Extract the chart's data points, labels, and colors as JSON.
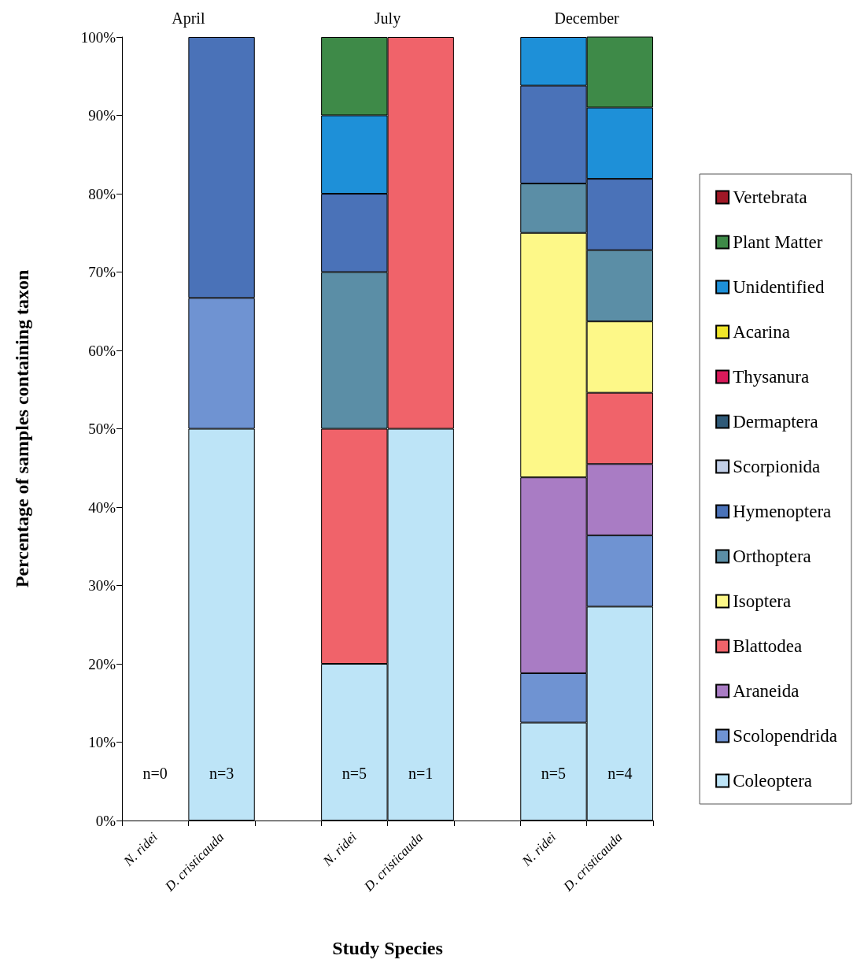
{
  "chart_data": {
    "type": "bar",
    "stacked": true,
    "xlabel": "Study Species",
    "ylabel": "Percentage of samples containing taxon",
    "categories": [
      "N. ridei",
      "D. cristicauda",
      null,
      "N. ridei",
      "D. cristicauda",
      null,
      "N. ridei",
      "D. cristicauda"
    ],
    "ylim": [
      0,
      100
    ],
    "yticks": [
      {
        "value": 0,
        "label": "0%"
      },
      {
        "value": 10,
        "label": "10%"
      },
      {
        "value": 20,
        "label": "20%"
      },
      {
        "value": 30,
        "label": "30%"
      },
      {
        "value": 40,
        "label": "40%"
      },
      {
        "value": 50,
        "label": "50%"
      },
      {
        "value": 60,
        "label": "60%"
      },
      {
        "value": 70,
        "label": "70%"
      },
      {
        "value": 80,
        "label": "80%"
      },
      {
        "value": 90,
        "label": "90%"
      },
      {
        "value": 100,
        "label": "100%"
      }
    ],
    "grid": false,
    "legend": "right",
    "annotations": [
      "April",
      "July",
      "December",
      "n=0",
      "n=3",
      "n=5",
      "n=1",
      "n=5",
      "n=4"
    ],
    "series": [
      {
        "name": "Coleoptera",
        "color": "#bde4f7",
        "values": [
          0,
          50,
          null,
          20,
          50,
          null,
          12.5,
          27.3
        ]
      },
      {
        "name": "Scolopendrida",
        "color": "#6f93d2",
        "values": [
          0,
          16.7,
          null,
          0,
          0,
          null,
          6.3,
          9.1
        ]
      },
      {
        "name": "Araneida",
        "color": "#a97cc4",
        "values": [
          0,
          0,
          null,
          0,
          0,
          null,
          25,
          9.1
        ]
      },
      {
        "name": "Blattodea",
        "color": "#f0636a",
        "values": [
          0,
          0,
          null,
          30,
          50,
          null,
          0,
          9.1
        ]
      },
      {
        "name": "Isoptera",
        "color": "#fdf888",
        "values": [
          0,
          0,
          null,
          0,
          0,
          null,
          31.2,
          9.1
        ]
      },
      {
        "name": "Orthoptera",
        "color": "#5b8ea6",
        "values": [
          0,
          0,
          null,
          20,
          0,
          null,
          6.3,
          9.1
        ]
      },
      {
        "name": "Hymenoptera",
        "color": "#4a72b8",
        "values": [
          0,
          33.3,
          null,
          10,
          0,
          null,
          12.5,
          9.1
        ]
      },
      {
        "name": "Scorpionida",
        "color": "#c2cfe8",
        "values": [
          0,
          0,
          null,
          0,
          0,
          null,
          0,
          0
        ]
      },
      {
        "name": "Dermaptera",
        "color": "#2f5a78",
        "values": [
          0,
          0,
          null,
          0,
          0,
          null,
          0,
          0
        ]
      },
      {
        "name": "Thysanura",
        "color": "#d81a5a",
        "values": [
          0,
          0,
          null,
          0,
          0,
          null,
          0,
          0
        ]
      },
      {
        "name": "Acarina",
        "color": "#f0e62a",
        "values": [
          0,
          0,
          null,
          0,
          0,
          null,
          0,
          0
        ]
      },
      {
        "name": "Unidentified",
        "color": "#1e90d8",
        "values": [
          0,
          0,
          null,
          10,
          0,
          null,
          6.2,
          9.1
        ]
      },
      {
        "name": "Plant Matter",
        "color": "#3e8a48",
        "values": [
          0,
          0,
          null,
          10,
          0,
          null,
          0,
          9.1
        ]
      },
      {
        "name": "Vertebrata",
        "color": "#a01826",
        "values": [
          0,
          0,
          null,
          0,
          0,
          null,
          0,
          0
        ]
      }
    ]
  }
}
